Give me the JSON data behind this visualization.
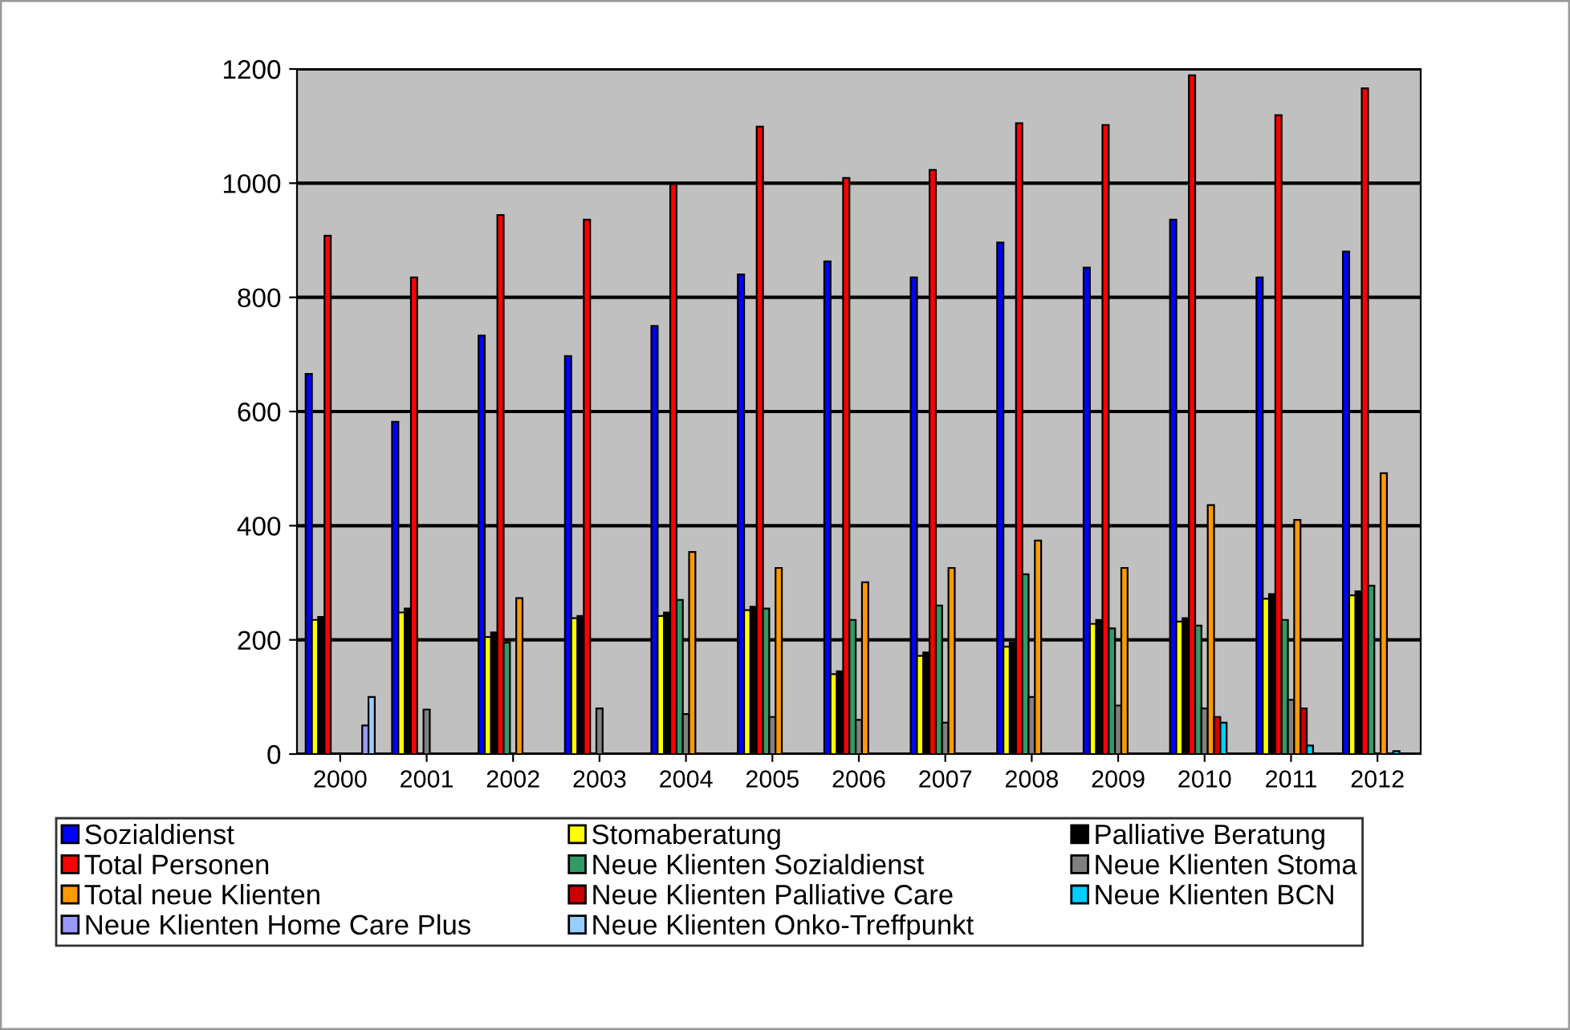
{
  "chart_data": {
    "type": "bar",
    "categories": [
      "2000",
      "2001",
      "2002",
      "2003",
      "2004",
      "2005",
      "2006",
      "2007",
      "2008",
      "2009",
      "2010",
      "2011",
      "2012"
    ],
    "ylim": [
      0,
      1200
    ],
    "yticks": [
      0,
      200,
      400,
      600,
      800,
      1000,
      1200
    ],
    "grid": "y",
    "legend": "bottom",
    "series": [
      {
        "name": "Sozialdienst",
        "color": "#0000ff",
        "values": [
          666,
          582,
          733,
          697,
          750,
          840,
          863,
          835,
          896,
          852,
          936,
          835,
          880
        ]
      },
      {
        "name": "Stomaberatung",
        "color": "#ffff00",
        "values": [
          235,
          248,
          205,
          238,
          242,
          252,
          140,
          172,
          188,
          228,
          232,
          272,
          278
        ]
      },
      {
        "name": "Palliative Beratung",
        "color": "#000000",
        "values": [
          240,
          255,
          213,
          242,
          248,
          258,
          145,
          178,
          195,
          235,
          238,
          280,
          285
        ]
      },
      {
        "name": "Total Personen",
        "color": "#ff0000",
        "values": [
          908,
          835,
          944,
          936,
          998,
          1099,
          1009,
          1023,
          1105,
          1102,
          1189,
          1119,
          1166
        ]
      },
      {
        "name": "Neue Klienten Sozialdienst",
        "color": "#339966",
        "values": [
          null,
          null,
          195,
          null,
          270,
          255,
          235,
          260,
          315,
          220,
          225,
          235,
          295
        ]
      },
      {
        "name": "Neue Klienten Stoma",
        "color": "#808080",
        "values": [
          null,
          78,
          null,
          80,
          70,
          65,
          60,
          55,
          100,
          85,
          80,
          95,
          null
        ]
      },
      {
        "name": "Total neue Klienten",
        "color": "#ff9900",
        "values": [
          null,
          null,
          273,
          null,
          354,
          326,
          301,
          326,
          374,
          326,
          436,
          410,
          492
        ]
      },
      {
        "name": "Neue Klienten Palliative Care",
        "color": "#cc0000",
        "values": [
          null,
          null,
          null,
          null,
          null,
          null,
          null,
          null,
          null,
          null,
          65,
          80,
          null
        ]
      },
      {
        "name": "Neue Klienten BCN",
        "color": "#00ccff",
        "values": [
          null,
          null,
          null,
          null,
          null,
          null,
          null,
          null,
          null,
          null,
          55,
          15,
          5
        ]
      },
      {
        "name": "Neue Klienten Home Care Plus",
        "color": "#9999ff",
        "values": [
          50,
          null,
          null,
          null,
          null,
          null,
          null,
          null,
          null,
          null,
          null,
          null,
          null
        ]
      },
      {
        "name": "Neue Klienten Onko-Treffpunkt",
        "color": "#99ccff",
        "values": [
          100,
          null,
          null,
          null,
          null,
          null,
          null,
          null,
          null,
          null,
          null,
          null,
          null
        ]
      }
    ]
  }
}
